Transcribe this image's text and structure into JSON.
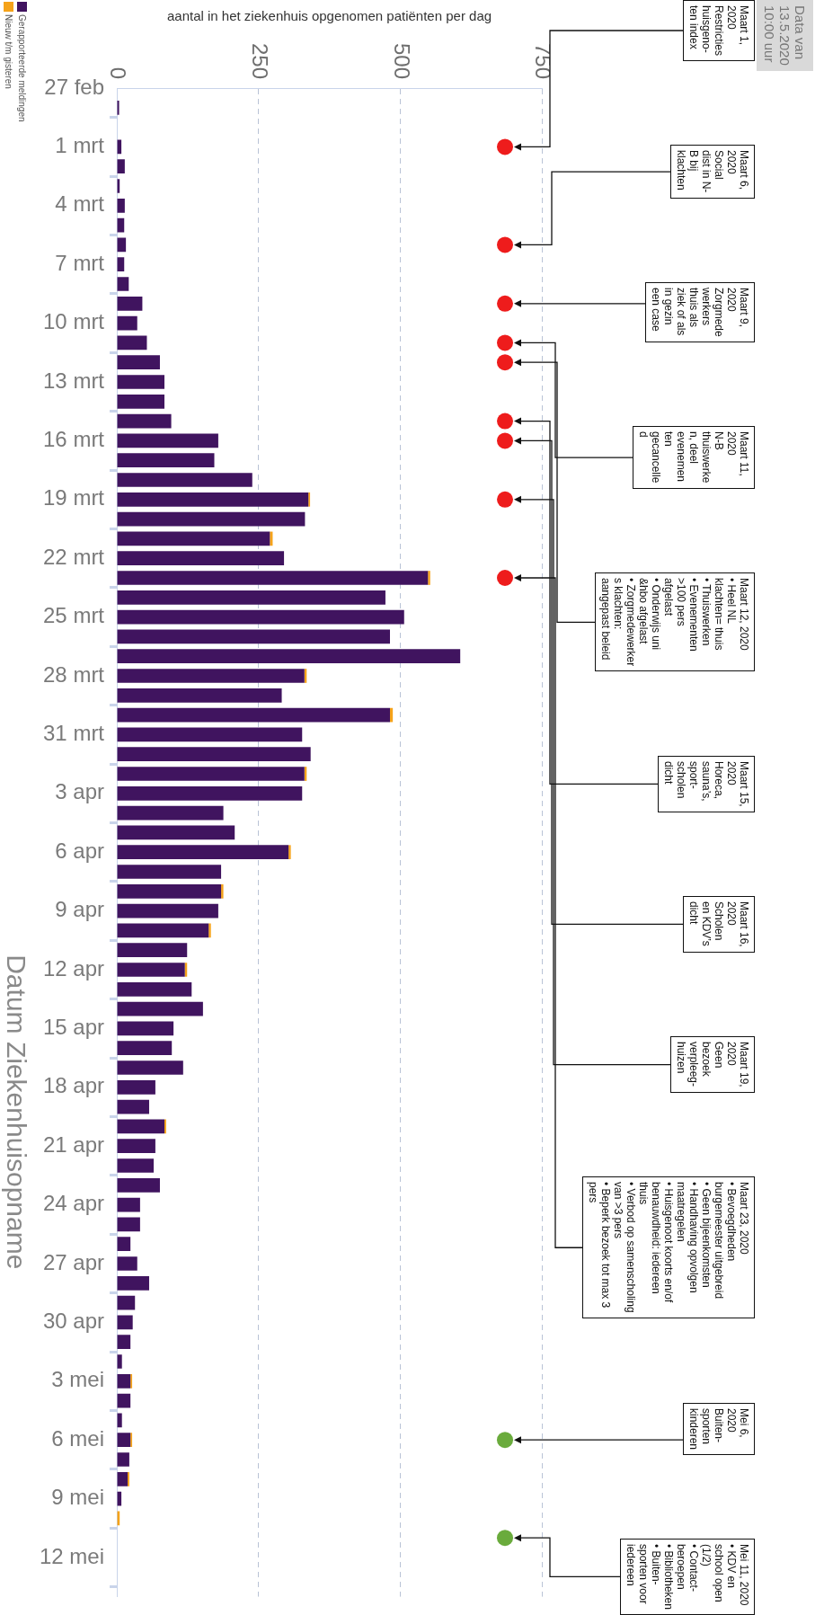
{
  "chart_data": {
    "type": "bar",
    "orientation": "horizontal",
    "stacked": true,
    "xlabel": "aantal in het ziekenhuis opgenomen patiënten per dag",
    "ylabel": "Datum Ziekenhuisopname",
    "subtitle": "Data van\n13.5.2020\n10:00 uur",
    "x": [
      "--02-27",
      "--02-28",
      "--02-29",
      "--03-01",
      "--03-02",
      "--03-03",
      "--03-04",
      "--03-05",
      "--03-06",
      "--03-07",
      "--03-08",
      "--03-09",
      "--03-10",
      "--03-11",
      "--03-12",
      "--03-13",
      "--03-14",
      "--03-15",
      "--03-16",
      "--03-17",
      "--03-18",
      "--03-19",
      "--03-20",
      "--03-21",
      "--03-22",
      "--03-23",
      "--03-24",
      "--03-25",
      "--03-26",
      "--03-27",
      "--03-28",
      "--03-29",
      "--03-30",
      "--03-31",
      "--04-01",
      "--04-02",
      "--04-03",
      "--04-04",
      "--04-05",
      "--04-06",
      "--04-07",
      "--04-08",
      "--04-09",
      "--04-10",
      "--04-11",
      "--04-12",
      "--04-13",
      "--04-14",
      "--04-15",
      "--04-16",
      "--04-17",
      "--04-18",
      "--04-19",
      "--04-20",
      "--04-21",
      "--04-22",
      "--04-23",
      "--04-24",
      "--04-25",
      "--04-26",
      "--04-27",
      "--04-28",
      "--04-29",
      "--04-30",
      "--05-01",
      "--05-02",
      "--05-03",
      "--05-04",
      "--05-05",
      "--05-06",
      "--05-07",
      "--05-08",
      "--05-09",
      "--05-10",
      "--05-11",
      "--05-12"
    ],
    "series": [
      {
        "name": "Gerapporteerde meldingen",
        "color": "#40145f",
        "values": [
          0,
          4,
          0,
          8,
          14,
          5,
          14,
          13,
          16,
          13,
          21,
          45,
          36,
          53,
          76,
          84,
          84,
          96,
          179,
          172,
          239,
          338,
          332,
          270,
          295,
          549,
          474,
          507,
          482,
          606,
          331,
          291,
          482,
          327,
          342,
          331,
          327,
          188,
          208,
          303,
          184,
          184,
          179,
          162,
          124,
          120,
          132,
          152,
          100,
          97,
          117,
          68,
          57,
          84,
          68,
          65,
          76,
          41,
          41,
          24,
          36,
          57,
          32,
          28,
          24,
          9,
          24,
          24,
          9,
          24,
          22,
          19,
          8,
          0,
          0,
          0
        ]
      },
      {
        "name": "Nieuw t/m gisteren",
        "color": "#f5a31a",
        "values": [
          0,
          0,
          0,
          0,
          0,
          0,
          0,
          0,
          0,
          0,
          0,
          0,
          0,
          0,
          0,
          0,
          0,
          0,
          0,
          0,
          0,
          3,
          0,
          5,
          0,
          4,
          0,
          0,
          0,
          0,
          4,
          0,
          5,
          0,
          0,
          4,
          0,
          0,
          0,
          4,
          0,
          4,
          0,
          4,
          0,
          4,
          0,
          0,
          0,
          0,
          0,
          0,
          0,
          3,
          0,
          0,
          0,
          0,
          0,
          0,
          0,
          0,
          0,
          0,
          0,
          0,
          3,
          0,
          0,
          3,
          0,
          3,
          0,
          5,
          0,
          0
        ]
      },
      {
        "type": "scatter",
        "marker": "circle",
        "x": [
          "--03-01",
          "--03-06",
          "--03-09",
          "--03-11",
          "--03-12",
          "--03-15",
          "--03-16",
          "--03-19",
          "--03-23",
          "--05-06",
          "--05-11"
        ],
        "values": [
          685,
          685,
          685,
          685,
          685,
          685,
          685,
          685,
          685,
          685,
          685
        ],
        "colors": [
          "#ee1c1c",
          "#ee1c1c",
          "#ee1c1c",
          "#ee1c1c",
          "#ee1c1c",
          "#ee1c1c",
          "#ee1c1c",
          "#ee1c1c",
          "#ee1c1c",
          "#6aab3c",
          "#6aab3c"
        ]
      }
    ],
    "xlim": [
      0,
      750
    ],
    "xticks": [
      0,
      250,
      500,
      750
    ],
    "ylim": [
      "--05-14",
      "--02-27"
    ],
    "yticks": [
      {
        "value": "--02-27",
        "label": "27 feb"
      },
      {
        "value": "--03-01",
        "label": "1 mrt"
      },
      {
        "value": "--03-04",
        "label": "4 mrt"
      },
      {
        "value": "--03-07",
        "label": "7 mrt"
      },
      {
        "value": "--03-10",
        "label": "10 mrt"
      },
      {
        "value": "--03-13",
        "label": "13 mrt"
      },
      {
        "value": "--03-16",
        "label": "16 mrt"
      },
      {
        "value": "--03-19",
        "label": "19 mrt"
      },
      {
        "value": "--03-22",
        "label": "22 mrt"
      },
      {
        "value": "--03-25",
        "label": "25 mrt"
      },
      {
        "value": "--03-28",
        "label": "28 mrt"
      },
      {
        "value": "--03-31",
        "label": "31 mrt"
      },
      {
        "value": "--04-03",
        "label": "3 apr"
      },
      {
        "value": "--04-06",
        "label": "6 apr"
      },
      {
        "value": "--04-09",
        "label": "9 apr"
      },
      {
        "value": "--04-12",
        "label": "12 apr"
      },
      {
        "value": "--04-15",
        "label": "15 apr"
      },
      {
        "value": "--04-18",
        "label": "18 apr"
      },
      {
        "value": "--04-21",
        "label": "21 apr"
      },
      {
        "value": "--04-24",
        "label": "24 apr"
      },
      {
        "value": "--04-27",
        "label": "27 apr"
      },
      {
        "value": "--04-30",
        "label": "30 apr"
      },
      {
        "value": "--05-03",
        "label": "3 mei"
      },
      {
        "value": "--05-06",
        "label": "6 mei"
      },
      {
        "value": "--05-09",
        "label": "9 mei"
      },
      {
        "value": "--05-12",
        "label": "12 mei"
      }
    ],
    "grid": "x",
    "legend": "top left",
    "annotations": [
      "Maart 1,\n2020\nRestricties\nhuisgeno-\nten index",
      "Maart 6,\n2020\nSocial\ndist in N-\nB bij\nklachten",
      "Maart 9,\n2020\nZorgmede\nwerkers\nthuis als\nziek of als\nin gezin\neen case",
      "Maart 11,\n2020\nN-B\nthuiswerke\nn, deel\nevenemen\nten\ngecancelle\nd",
      "Maart 12, 2020\n• Heel NL\nklachten= thuis\n• Thuiswerken\n• Evenementen\n>100 pers\nafgelast\n• Onderwijs uni\n&hbo afgelast\n• Zorgmedewerker\ns klachten:\naangepast beleid",
      "Maart 15,\n2020\nHoreca,\nsauna’s,\nsport-\nscholen\ndicht",
      "Maart 16,\n2020\nScholen\nen KDV’s\ndicht",
      "Maart 19,\n2020\nGeen\nbezoek\nverpleeg-\nhuizen",
      "Maart 23, 2020\n• Bevoegdheden\nburgemeester uitgebreid\n• Geen bijeenkomsten\n• Handhaving opvolgen\nmaatregelen\n• Huisgenoot koorts en/of\nbenauwdheid: iedereen\nthuis\n• Verbod op samenscholing\nvan >3 pers\n• Beperk bezoek tot max 3\npers",
      "Mei 6,\n2020\nBuiten-\nsporten\nkinderen",
      "Mei 11, 2020\n• KDV en\nschool open\n(1/2)\n• Contact-\nberoepen\n• Bibliotheken\n• Buiten-\nsporten voor\niedereen"
    ]
  }
}
